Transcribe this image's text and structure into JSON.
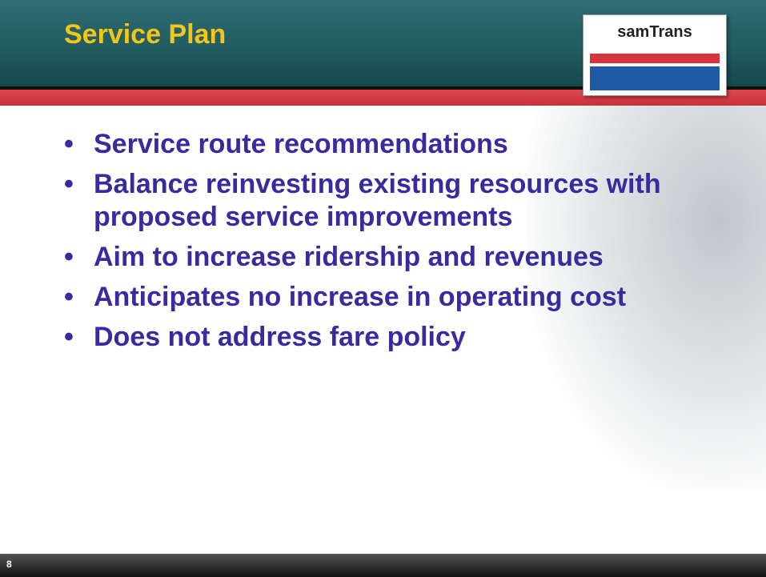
{
  "header": {
    "title": "Service Plan",
    "logo": "samTrans"
  },
  "bullets": [
    "Service route recommendations",
    "Balance reinvesting existing resources with proposed service improvements",
    "Aim to increase ridership and revenues",
    "Anticipates no increase in operating cost",
    "Does not address fare policy"
  ],
  "footer": {
    "page_number": "8"
  }
}
